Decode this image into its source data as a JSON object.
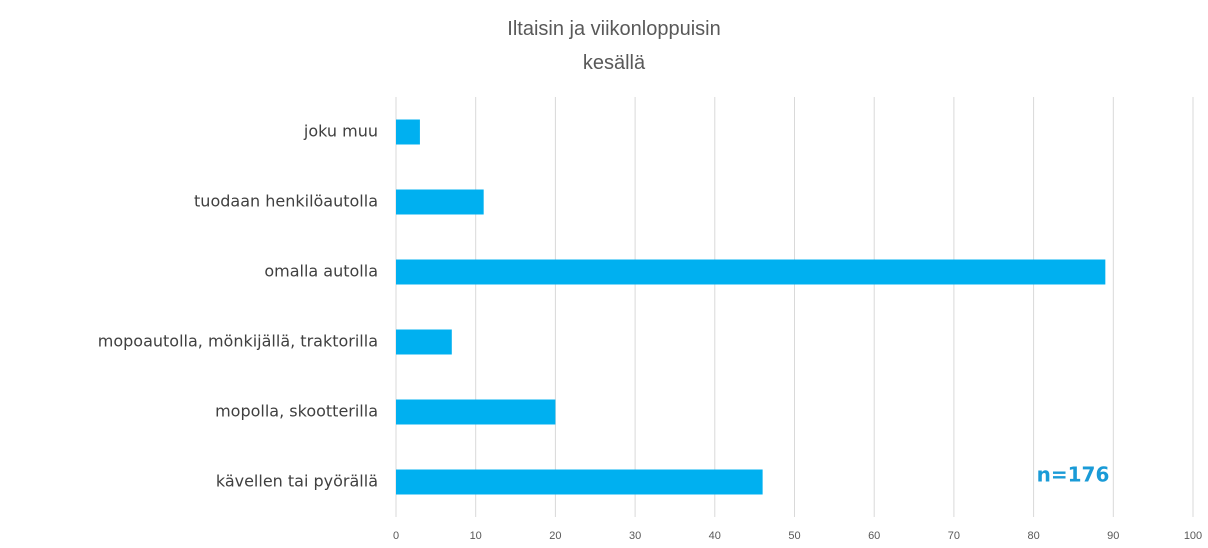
{
  "chart_data": {
    "type": "bar",
    "orientation": "horizontal",
    "title": "Iltaisin ja viikonloppuisin\nkesällä",
    "categories": [
      "joku muu",
      "tuodaan henkilöautolla",
      "omalla autolla",
      "mopoautolla, mönkijällä, traktorilla",
      "mopolla, skootterilla",
      "kävellen tai pyörällä"
    ],
    "values": [
      3,
      11,
      89,
      7,
      20,
      46
    ],
    "color": "#00b0f0",
    "xlim": [
      0,
      100
    ],
    "xticks": [
      0,
      10,
      20,
      30,
      40,
      50,
      60,
      70,
      80,
      90,
      100
    ],
    "grid": true,
    "annotation": "n=176"
  }
}
